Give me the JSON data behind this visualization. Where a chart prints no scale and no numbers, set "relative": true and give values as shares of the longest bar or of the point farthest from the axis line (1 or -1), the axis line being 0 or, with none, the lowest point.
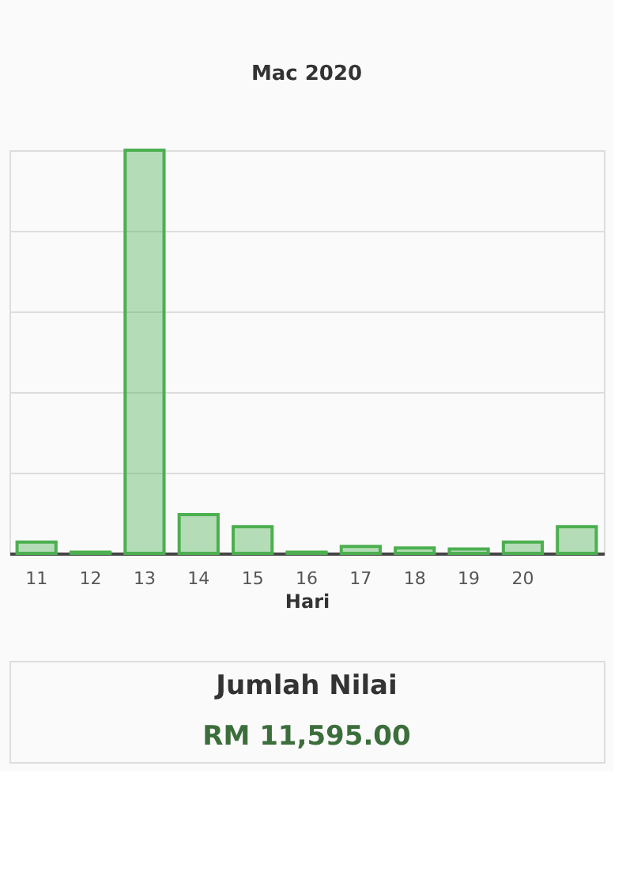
{
  "chart_data": {
    "type": "bar",
    "title": "Mac 2020",
    "xlabel": "Hari",
    "categories": [
      "11",
      "12",
      "13",
      "14",
      "15",
      "16",
      "17",
      "18",
      "19",
      "20",
      null
    ],
    "values": [
      0.028,
      0.003,
      1,
      0.096,
      0.066,
      0.003,
      0.017,
      0.013,
      0.011,
      0.028,
      0.066
    ],
    "color": "#4caf50",
    "relative": true,
    "grid": "y",
    "annotations": [
      "Jumlah Nilai",
      "RM 11,595.00"
    ]
  }
}
